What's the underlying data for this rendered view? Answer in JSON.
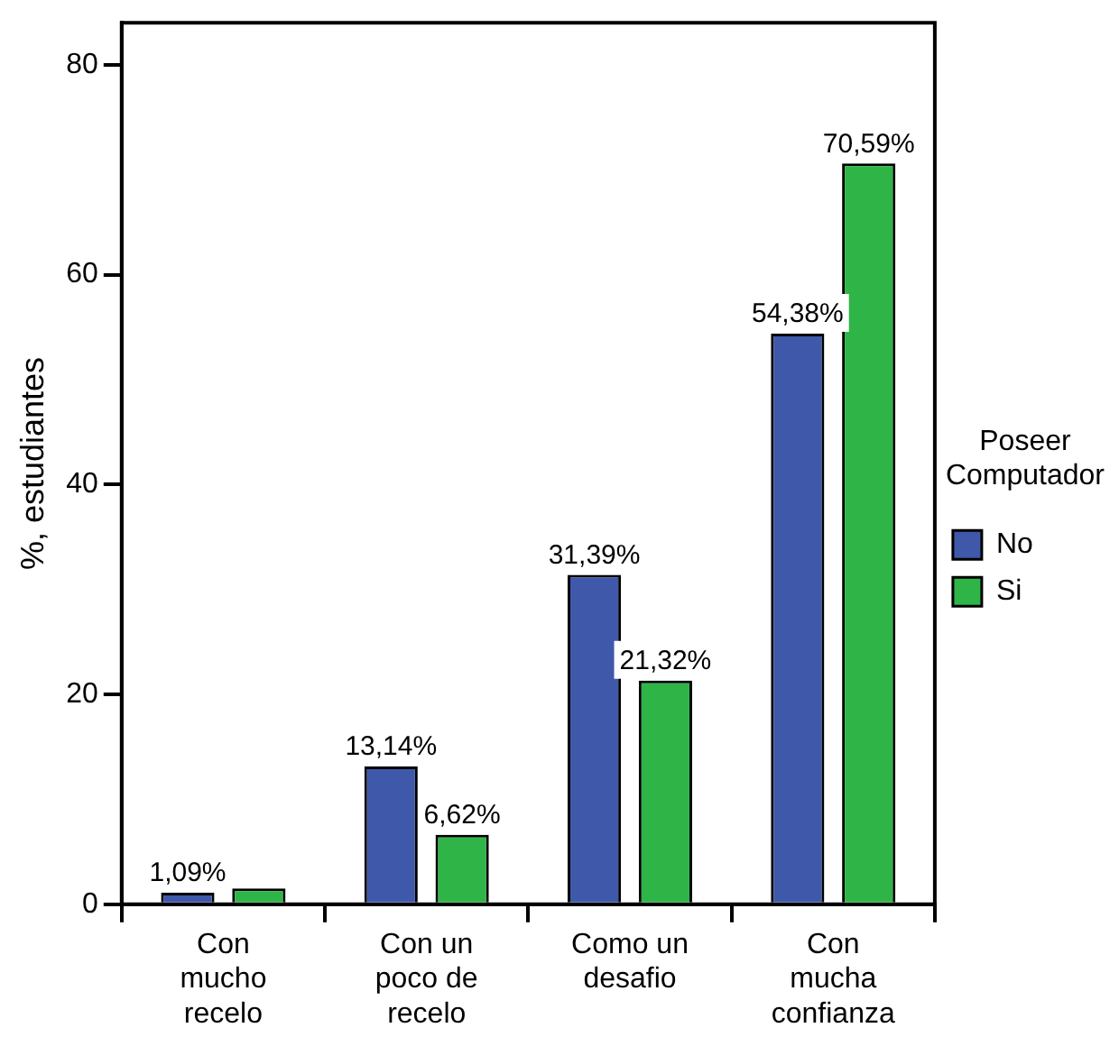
{
  "chart_data": {
    "type": "bar",
    "ylabel": "%, estudiantes",
    "legend_title": "Poseer Computador",
    "categories": [
      "Con mucho recelo",
      "Con un poco de recelo",
      "Como un desafio",
      "Con mucha confianza"
    ],
    "series": [
      {
        "name": "No",
        "color": "#3f58a9",
        "values": [
          1.09,
          13.14,
          31.39,
          54.38
        ],
        "value_labels": [
          "1,09%",
          "13,14%",
          "31,39%",
          "54,38%"
        ]
      },
      {
        "name": "Si",
        "color": "#2fb547",
        "values": [
          1.5,
          6.62,
          21.32,
          70.59
        ],
        "value_labels": [
          null,
          "6,62%",
          "21,32%",
          "70,59%"
        ]
      }
    ],
    "ylim": [
      0,
      84
    ],
    "yticks": [
      0,
      20,
      40,
      60,
      80
    ],
    "grid": false,
    "legend": "right"
  }
}
